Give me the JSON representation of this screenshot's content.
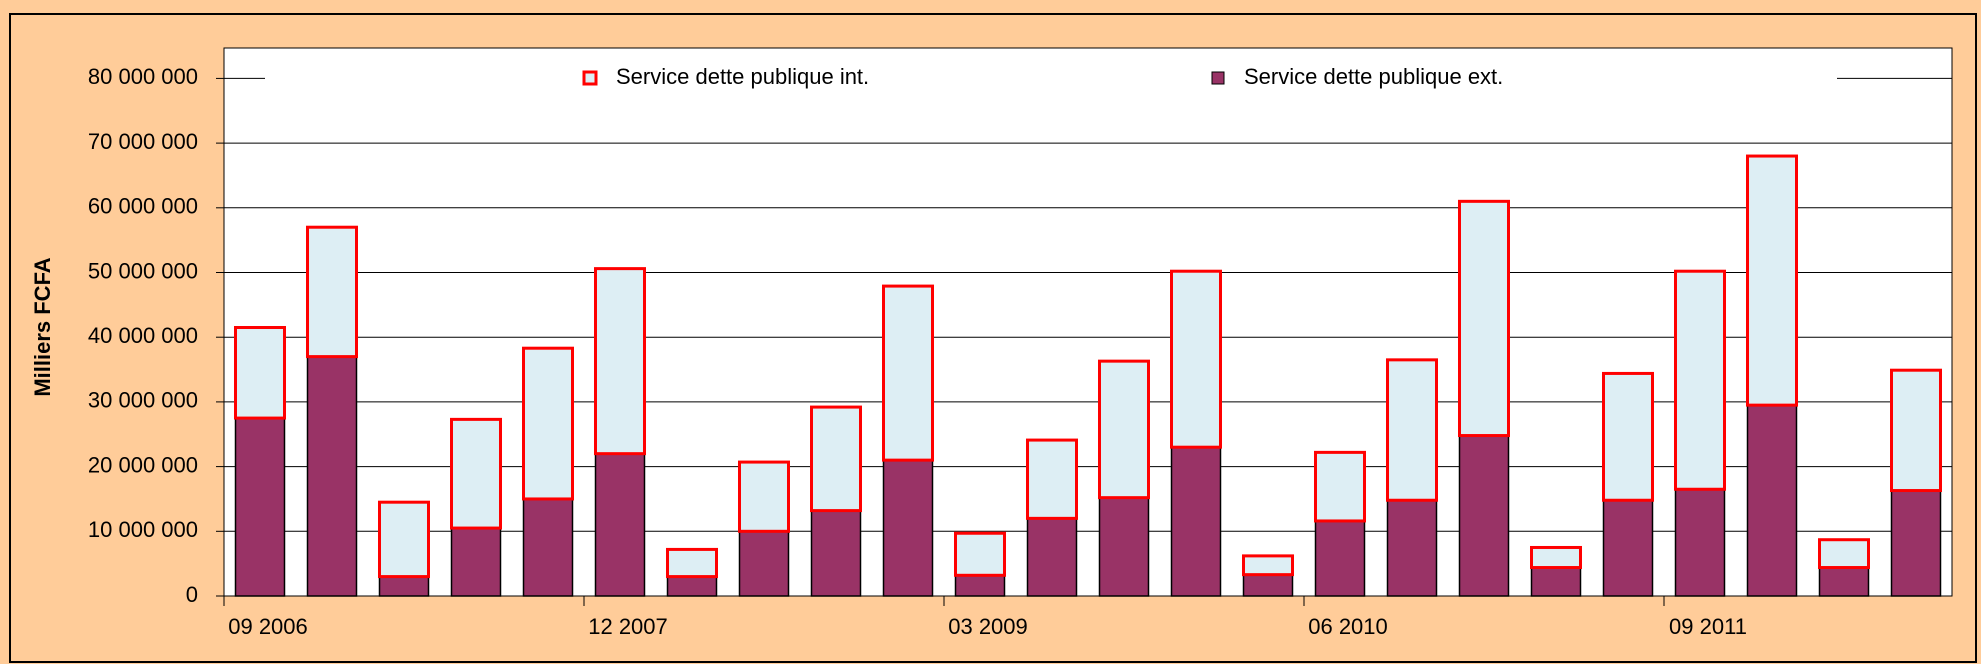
{
  "chart_data": {
    "type": "stacked-bar",
    "y_label": "Milliers FCFA",
    "categories": [
      "09 2006",
      null,
      null,
      null,
      null,
      "12 2007",
      null,
      null,
      null,
      null,
      "03 2009",
      null,
      null,
      null,
      null,
      "06 2010",
      null,
      null,
      null,
      null,
      "09 2011",
      null,
      null,
      null
    ],
    "series": [
      {
        "name": "Service dette publique ext.",
        "color": "#993366",
        "stroke": "#000000",
        "values": [
          27500000,
          37000000,
          3000000,
          10500000,
          15000000,
          22000000,
          3000000,
          10000000,
          13200000,
          21000000,
          3200000,
          12000000,
          15200000,
          23000000,
          3300000,
          11600000,
          14800000,
          24800000,
          4400000,
          14800000,
          16500000,
          29500000,
          4400000,
          16300000
        ]
      },
      {
        "name": "Service dette publique int.",
        "color": "#DDEEF4",
        "stroke": "#FF0000",
        "values": [
          14000000,
          20000000,
          11500000,
          16800000,
          23300000,
          28600000,
          4200000,
          10700000,
          16000000,
          26900000,
          6500000,
          12100000,
          21100000,
          27200000,
          2900000,
          10600000,
          21700000,
          36200000,
          3100000,
          19600000,
          33700000,
          38500000,
          4300000,
          18600000
        ]
      }
    ],
    "ylim": [
      0,
      84700000
    ],
    "yticks": [
      {
        "value": 0,
        "label": "0"
      },
      {
        "value": 10000000,
        "label": "10 000 000"
      },
      {
        "value": 20000000,
        "label": "20 000 000"
      },
      {
        "value": 30000000,
        "label": "30 000 000"
      },
      {
        "value": 40000000,
        "label": "40 000 000"
      },
      {
        "value": 50000000,
        "label": "50 000 000"
      },
      {
        "value": 60000000,
        "label": "60 000 000"
      },
      {
        "value": 70000000,
        "label": "70 000 000"
      },
      {
        "value": 80000000,
        "label": "80 000 000"
      }
    ],
    "grid": true
  }
}
